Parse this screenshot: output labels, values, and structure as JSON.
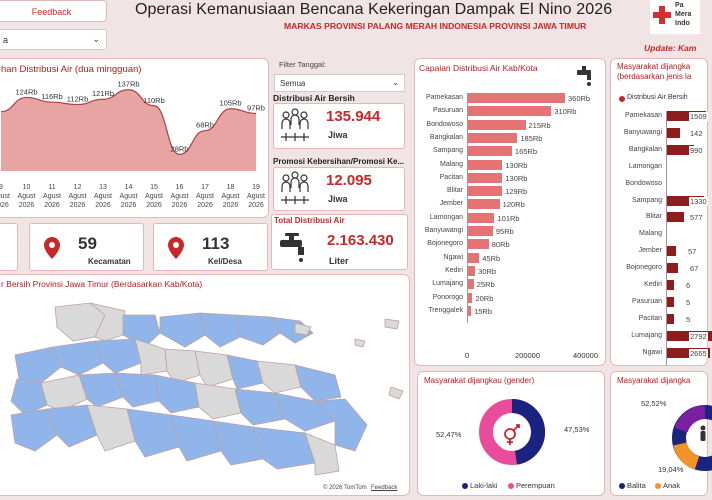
{
  "header": {
    "feedback_label": "Feedback",
    "dropdown_value": "a",
    "title": "Operasi Kemanusiaan Bencana Kekeringan Dampak El Nino 2026",
    "subtitle": "MARKAS PROVINSI PALANG MERAH INDONESIA PROVINSI JAWA TIMUR",
    "update_label": "Update: Kam",
    "logo_text": [
      "Pa",
      "Mera",
      "Indo"
    ]
  },
  "trend": {
    "title": "han Distribusi Air (dua mingguan)",
    "chart_data": {
      "type": "area",
      "title": "han Distribusi Air (dua mingguan)",
      "x": [
        "9",
        "10",
        "11",
        "12",
        "13",
        "14",
        "15",
        "16",
        "17",
        "18",
        "19"
      ],
      "x_labels": [
        "Agust 2026",
        "Agust 2026",
        "Agust 2026",
        "Agust 2026",
        "Agust 2026",
        "Agust 2026",
        "Agust 2026",
        "Agust 2026",
        "Agust 2026",
        "Agust 2026",
        "Agust 2026"
      ],
      "values": [
        100,
        124,
        116,
        112,
        121,
        137,
        110,
        28,
        68,
        105,
        97
      ],
      "data_labels": [
        "",
        "124Rb",
        "116Rb",
        "112Rb",
        "121Rb",
        "137Rb",
        "110Rb",
        "28Rb",
        "68Rb",
        "105Rb",
        "97Rb"
      ],
      "color": "#e8a3a3"
    }
  },
  "filter": {
    "label": "Filter Tanggal:",
    "value": "Semua"
  },
  "kpi": {
    "air_bersih": {
      "title": "Distribusi Air Bersih",
      "value": "135.944",
      "unit": "Jiwa"
    },
    "promosi": {
      "title": "Promosi Kebersihan/Promosi Ke...",
      "value": "12.095",
      "unit": "Jiwa"
    },
    "total": {
      "title": "Total Distribusi Air",
      "value": "2.163.430",
      "unit": "Liter"
    },
    "kecamatan": {
      "value": "59",
      "label": "Kecamatan"
    },
    "keldesa": {
      "value": "113",
      "label": "Kel/Desa"
    }
  },
  "map": {
    "title": "r Bersih Provinsi Jawa Timur (Berdasarkan Kab/Kota)",
    "attribution": "© 2026 TomTom",
    "feedback": "Feedback",
    "colors": {
      "served": "#8fb5ea",
      "other": "#d9d9d9"
    }
  },
  "kab": {
    "title": "Capaian Distribusi Air Kab/Kota",
    "chart_data": {
      "type": "bar",
      "orientation": "horizontal",
      "title": "Capaian Distribusi Air Kab/Kota",
      "categories": [
        "Pamekasan",
        "Pasuruan",
        "Bondowoso",
        "Bangkalan",
        "Sampang",
        "Malang",
        "Pacitan",
        "Blitar",
        "Jember",
        "Lamongan",
        "Banyuwangi",
        "Bojonegoro",
        "Ngawi",
        "Kediri",
        "Lumajang",
        "Ponorogo",
        "Trenggalek"
      ],
      "values": [
        360,
        310,
        215,
        185,
        165,
        130,
        130,
        129,
        120,
        101,
        95,
        80,
        45,
        30,
        25,
        20,
        15
      ],
      "value_labels": [
        "360Rb",
        "310Rb",
        "215Rb",
        "185Rb",
        "165Rb",
        "130Rb",
        "130Rb",
        "129Rb",
        "120Rb",
        "101Rb",
        "95Rb",
        "80Rb",
        "45Rb",
        "30Rb",
        "25Rb",
        "20Rb",
        "15Rb"
      ],
      "unit": "Rb",
      "xticks": [
        "0",
        "200000",
        "400000"
      ],
      "xlim": [
        0,
        400000
      ],
      "color": "#e57373"
    }
  },
  "jenis": {
    "title": "Masyarakat dijangka",
    "subtitle": "(berdasarkan jenis la",
    "legend": "Distribusi Air Bersih",
    "chart_data": {
      "type": "bar",
      "orientation": "horizontal",
      "categories": [
        "Pamekasan",
        "Banyuwangi",
        "Bangkalan",
        "Lamongan",
        "Bondowoso",
        "Sampang",
        "Blitar",
        "Malang",
        "Jember",
        "Bojonegoro",
        "Kediri",
        "Pasuruan",
        "Pacitan",
        "Lumajang",
        "Ngawi"
      ],
      "value_labels": [
        "1509",
        "142",
        "990",
        "",
        "",
        "1330",
        "577",
        "",
        "57",
        "67",
        "6",
        "5",
        "5",
        "2792",
        "2665"
      ]
    }
  },
  "gender": {
    "title": "Masyarakat dijangkau (gender)",
    "chart_data": {
      "type": "pie",
      "labels": [
        "Laki-laki",
        "Perempuan"
      ],
      "values": [
        47.53,
        52.47
      ],
      "value_labels": [
        "47,53%",
        "52,47%"
      ],
      "colors": [
        "#1a237e",
        "#e94d9a"
      ]
    },
    "legend": [
      "Laki-laki",
      "Perempuan"
    ]
  },
  "usia": {
    "title": "Masyarakat dijangka",
    "labels": [
      "52,52%",
      "19,04%"
    ],
    "legend": [
      "Balita",
      "Anak"
    ],
    "colors": [
      "#7b1fa2",
      "#f0932b",
      "#1a237e"
    ]
  }
}
